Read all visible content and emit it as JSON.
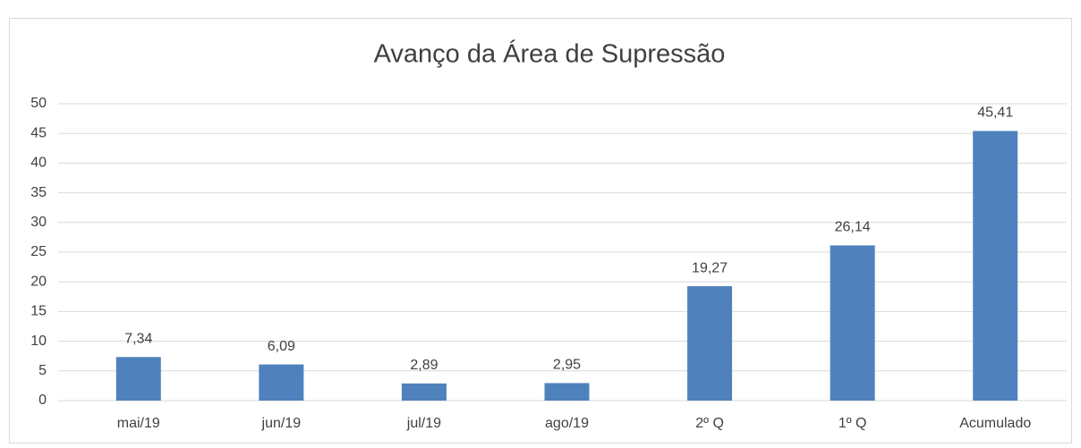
{
  "chart_data": {
    "type": "bar",
    "title": "Avanço da Área de Supressão",
    "categories": [
      "mai/19",
      "jun/19",
      "jul/19",
      "ago/19",
      "2º Q",
      "1º Q",
      "Acumulado"
    ],
    "values": [
      7.34,
      6.09,
      2.89,
      2.95,
      19.27,
      26.14,
      45.41
    ],
    "value_labels": [
      "7,34",
      "6,09",
      "2,89",
      "2,95",
      "19,27",
      "26,14",
      "45,41"
    ],
    "color": "#4f81bd",
    "ylim": [
      0,
      50
    ],
    "yticks": [
      0,
      5,
      10,
      15,
      20,
      25,
      30,
      35,
      40,
      45,
      50
    ],
    "grid": true
  }
}
